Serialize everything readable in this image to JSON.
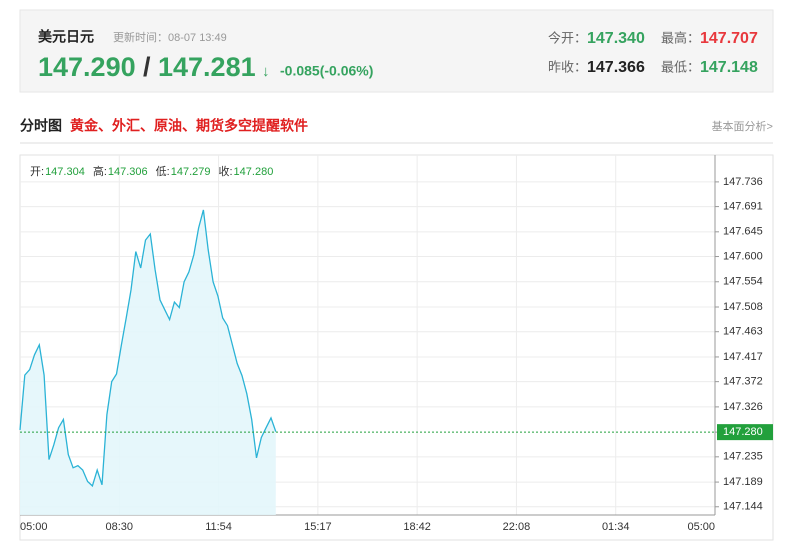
{
  "header": {
    "name": "美元日元",
    "update_time": "更新时间：08-07 13:49",
    "price_bid": "147.290",
    "separator": "/",
    "price_ask": "147.281",
    "arrow": "↓",
    "change": "-0.085(-0.06%)",
    "stats": [
      {
        "label": "今开：",
        "value": "147.340"
      },
      {
        "label": "最高：",
        "value": "147.707"
      },
      {
        "label": "昨收：",
        "value": "147.366"
      },
      {
        "label": "最低：",
        "value": "147.148"
      }
    ]
  },
  "section": {
    "title": "分时图",
    "promo": "黄金、外汇、原油、期货多空提醒软件",
    "link": "基本面分析>"
  },
  "chart_data": {
    "type": "line",
    "ohlc": [
      {
        "label": "开:",
        "value": "147.304"
      },
      {
        "label": "高:",
        "value": "147.306"
      },
      {
        "label": "低:",
        "value": "147.279"
      },
      {
        "label": "收:",
        "value": "147.280"
      }
    ],
    "xticks": [
      "05:00",
      "08:30",
      "11:54",
      "15:17",
      "18:42",
      "22:08",
      "01:34",
      "05:00"
    ],
    "x": [
      "05:00",
      "05:10",
      "05:20",
      "05:30",
      "05:40",
      "05:50",
      "06:00",
      "06:10",
      "06:20",
      "06:30",
      "06:40",
      "06:50",
      "07:00",
      "07:10",
      "07:20",
      "07:30",
      "07:40",
      "07:50",
      "08:00",
      "08:10",
      "08:20",
      "08:30",
      "08:40",
      "08:50",
      "09:00",
      "09:10",
      "09:20",
      "09:30",
      "09:40",
      "09:50",
      "10:00",
      "10:10",
      "10:20",
      "10:30",
      "10:40",
      "10:50",
      "11:00",
      "11:10",
      "11:20",
      "11:30",
      "11:40",
      "11:50",
      "12:00",
      "12:10",
      "12:20",
      "12:30",
      "12:40",
      "12:50",
      "13:00",
      "13:10",
      "13:20",
      "13:30",
      "13:40",
      "13:50"
    ],
    "series": [
      {
        "color": "#2bb3d6",
        "values": [
          147.284,
          147.384,
          147.394,
          147.421,
          147.439,
          147.384,
          147.23,
          147.257,
          147.288,
          147.303,
          147.239,
          147.215,
          147.219,
          147.211,
          147.19,
          147.182,
          147.211,
          147.184,
          147.312,
          147.372,
          147.386,
          147.439,
          147.488,
          147.539,
          147.609,
          147.579,
          147.63,
          147.641,
          147.576,
          147.521,
          147.503,
          147.485,
          147.517,
          147.507,
          147.554,
          147.572,
          147.603,
          147.652,
          147.685,
          147.612,
          147.554,
          147.528,
          147.488,
          147.474,
          147.439,
          147.405,
          147.383,
          147.35,
          147.303,
          147.233,
          147.27,
          147.288,
          147.306,
          147.281
        ]
      }
    ],
    "ylim": [
      147.129,
      147.785
    ],
    "yticks": [
      147.736,
      147.691,
      147.645,
      {
        "value": 147.6,
        "label": "147.600"
      },
      147.554,
      147.508,
      147.463,
      147.417,
      147.372,
      147.326,
      {
        "value": 147.28,
        "label": "147.280"
      },
      147.235,
      147.189,
      147.144
    ],
    "reference_line": 147.28,
    "grid": true
  }
}
